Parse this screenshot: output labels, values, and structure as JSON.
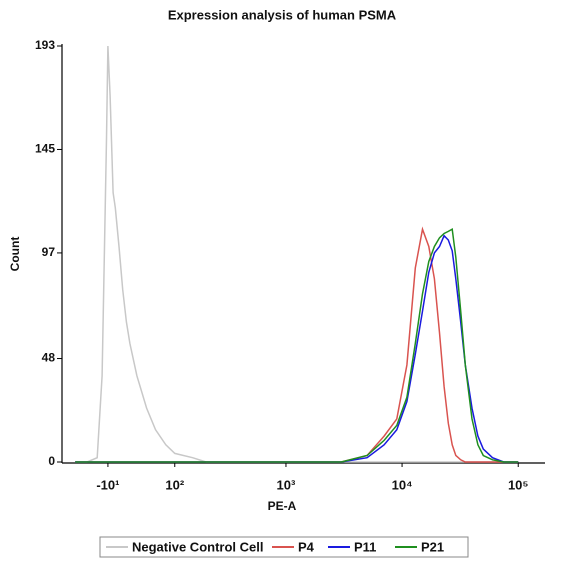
{
  "chart_data": {
    "type": "line",
    "title": "Expression analysis of human PSMA",
    "x_label": "PE-A",
    "y_label": "Count",
    "x": [
      -60,
      -40,
      -25,
      -18,
      -12,
      -10,
      -7,
      -3,
      0,
      5,
      10,
      15,
      20,
      30,
      45,
      60,
      80,
      100,
      150,
      200,
      300,
      1000,
      3000,
      5000,
      7000,
      9000,
      11000,
      13000,
      15000,
      17000,
      19000,
      21000,
      23000,
      25000,
      27000,
      29000,
      32000,
      35000,
      40000,
      45000,
      50000,
      60000,
      75000,
      100000
    ],
    "series": [
      {
        "name": "Negative Control Cell",
        "color": "#c8c8c8",
        "values": [
          0,
          0,
          2,
          40,
          150,
          193,
          170,
          125,
          118,
          100,
          80,
          65,
          55,
          40,
          25,
          15,
          8,
          4,
          2,
          0,
          0,
          0,
          0,
          0,
          0,
          0,
          0,
          0,
          0,
          0,
          0,
          0,
          0,
          0,
          0,
          0,
          0,
          0,
          0,
          0,
          0,
          0,
          0,
          0
        ]
      },
      {
        "name": "P4",
        "color": "#d9534f",
        "values": [
          0,
          0,
          0,
          0,
          0,
          0,
          0,
          0,
          0,
          0,
          0,
          0,
          0,
          0,
          0,
          0,
          0,
          0,
          0,
          0,
          0,
          0,
          0,
          3,
          12,
          20,
          45,
          90,
          108,
          100,
          85,
          60,
          35,
          18,
          8,
          3,
          1,
          0,
          0,
          0,
          0,
          0,
          0,
          0
        ]
      },
      {
        "name": "P11",
        "color": "#1a1adf",
        "values": [
          0,
          0,
          0,
          0,
          0,
          0,
          0,
          0,
          0,
          0,
          0,
          0,
          0,
          0,
          0,
          0,
          0,
          0,
          0,
          0,
          0,
          0,
          0,
          2,
          8,
          15,
          28,
          50,
          70,
          88,
          97,
          100,
          105,
          103,
          98,
          85,
          65,
          45,
          25,
          12,
          6,
          2,
          0,
          0
        ]
      },
      {
        "name": "P21",
        "color": "#1f8f1f",
        "values": [
          0,
          0,
          0,
          0,
          0,
          0,
          0,
          0,
          0,
          0,
          0,
          0,
          0,
          0,
          0,
          0,
          0,
          0,
          0,
          0,
          0,
          0,
          0,
          3,
          10,
          17,
          30,
          55,
          78,
          93,
          100,
          104,
          106,
          107,
          108,
          95,
          70,
          45,
          20,
          8,
          3,
          1,
          0,
          0
        ]
      }
    ],
    "xscale": "biexponential",
    "xlim": [
      -86,
      170000
    ],
    "xticks": [
      {
        "value": -10,
        "label": "-10¹"
      },
      {
        "value": 100,
        "label": "10²"
      },
      {
        "value": 1000,
        "label": "10³"
      },
      {
        "value": 10000,
        "label": "10⁴"
      },
      {
        "value": 100000,
        "label": "10⁵"
      }
    ],
    "ylim": [
      0,
      193
    ],
    "yticks": [
      0,
      48,
      97,
      145,
      193
    ],
    "legend": "bottom"
  }
}
